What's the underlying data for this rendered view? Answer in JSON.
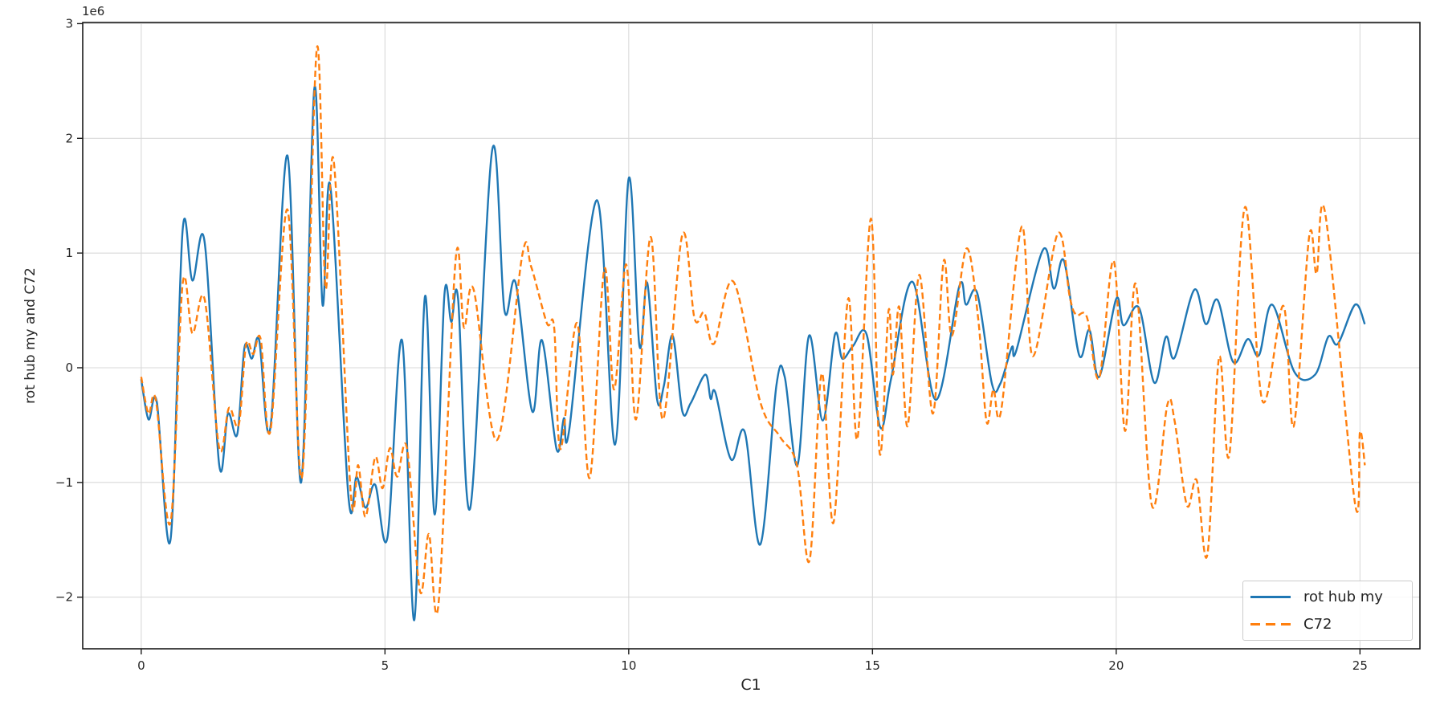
{
  "chart_data": {
    "type": "line",
    "title": "",
    "xlabel": "C1",
    "ylabel": "rot hub my and C72",
    "offset_text": "1e6",
    "y_unit_multiplier": 1000000,
    "xlim": [
      -1.2,
      26.23
    ],
    "ylim": [
      -2.45,
      3.01
    ],
    "xticks": [
      0,
      5,
      10,
      15,
      20,
      25
    ],
    "yticks": [
      -2,
      -1,
      0,
      1,
      2,
      3
    ],
    "grid": true,
    "legend_position": "lower right",
    "colors": {
      "blue": "#1f77b4",
      "orange": "#ff7f0e",
      "grid": "#d9d9d9",
      "spine": "#1a1a1a",
      "text": "#262626"
    },
    "series": [
      {
        "name": "rot hub my",
        "color": "#1f77b4",
        "style": "solid",
        "x": [
          0,
          0.15,
          0.32,
          0.6,
          0.85,
          1.05,
          1.3,
          1.6,
          1.78,
          1.97,
          2.12,
          2.27,
          2.42,
          2.65,
          3.0,
          3.28,
          3.55,
          3.72,
          3.88,
          4.25,
          4.42,
          4.6,
          4.8,
          5.05,
          5.35,
          5.6,
          5.82,
          6.02,
          6.22,
          6.36,
          6.5,
          6.75,
          7.2,
          7.45,
          7.68,
          8.02,
          8.22,
          8.52,
          8.67,
          8.78,
          9.35,
          9.72,
          10.0,
          10.22,
          10.38,
          10.58,
          10.72,
          10.9,
          11.1,
          11.27,
          11.57,
          11.68,
          11.78,
          12.1,
          12.38,
          12.7,
          13.03,
          13.2,
          13.46,
          13.7,
          13.98,
          14.23,
          14.38,
          14.6,
          14.88,
          15.16,
          15.38,
          15.82,
          16.3,
          16.78,
          16.92,
          17.15,
          17.45,
          17.62,
          17.86,
          17.95,
          18.5,
          18.72,
          18.93,
          19.24,
          19.45,
          19.65,
          20.0,
          20.15,
          20.47,
          20.78,
          21.02,
          21.2,
          21.6,
          21.84,
          22.08,
          22.4,
          22.7,
          22.93,
          23.2,
          23.66,
          24.08,
          24.35,
          24.55,
          24.9,
          25.1
        ],
        "y": [
          -0.1,
          -0.45,
          -0.3,
          -1.5,
          1.2,
          0.76,
          1.1,
          -0.85,
          -0.4,
          -0.58,
          0.18,
          0.08,
          0.24,
          -0.52,
          1.85,
          -1.0,
          2.43,
          0.55,
          1.58,
          -1.12,
          -0.95,
          -1.22,
          -1.02,
          -1.48,
          0.24,
          -2.2,
          0.62,
          -1.28,
          0.64,
          0.4,
          0.6,
          -1.22,
          1.9,
          0.5,
          0.74,
          -0.38,
          0.24,
          -0.71,
          -0.44,
          -0.54,
          1.46,
          -0.67,
          1.65,
          0.19,
          0.74,
          -0.27,
          -0.16,
          0.28,
          -0.38,
          -0.31,
          -0.06,
          -0.27,
          -0.22,
          -0.8,
          -0.56,
          -1.54,
          -0.15,
          -0.08,
          -0.85,
          0.28,
          -0.46,
          0.29,
          0.08,
          0.19,
          0.29,
          -0.52,
          -0.1,
          0.75,
          -0.28,
          0.71,
          0.55,
          0.65,
          -0.14,
          -0.14,
          0.18,
          0.15,
          1.03,
          0.69,
          0.93,
          0.11,
          0.33,
          -0.08,
          0.6,
          0.37,
          0.52,
          -0.13,
          0.27,
          0.09,
          0.68,
          0.38,
          0.59,
          0.05,
          0.25,
          0.11,
          0.55,
          -0.04,
          -0.06,
          0.27,
          0.21,
          0.55,
          0.38
        ]
      },
      {
        "name": "C72",
        "color": "#ff7f0e",
        "style": "dashed",
        "x": [
          0,
          0.15,
          0.3,
          0.6,
          0.85,
          1.05,
          1.3,
          1.6,
          1.8,
          2.0,
          2.15,
          2.3,
          2.45,
          2.65,
          3.0,
          3.3,
          3.6,
          3.78,
          3.95,
          4.3,
          4.45,
          4.6,
          4.8,
          4.95,
          5.1,
          5.25,
          5.45,
          5.72,
          5.9,
          6.1,
          6.45,
          6.62,
          6.82,
          7.3,
          7.82,
          8.0,
          8.32,
          8.47,
          8.6,
          8.94,
          9.2,
          9.5,
          9.7,
          9.95,
          10.15,
          10.45,
          10.7,
          11.1,
          11.35,
          11.55,
          11.75,
          12.15,
          12.7,
          13.1,
          13.45,
          13.71,
          13.96,
          14.2,
          14.5,
          14.69,
          14.97,
          15.15,
          15.33,
          15.42,
          15.55,
          15.72,
          15.96,
          16.24,
          16.46,
          16.63,
          16.93,
          17.17,
          17.34,
          17.48,
          17.64,
          18.06,
          18.29,
          18.8,
          19.05,
          19.18,
          19.4,
          19.65,
          19.95,
          20.18,
          20.4,
          20.73,
          21.05,
          21.2,
          21.45,
          21.65,
          21.87,
          22.11,
          22.32,
          22.64,
          23.0,
          23.43,
          23.64,
          23.96,
          24.11,
          24.29,
          24.9,
          25.0,
          25.1
        ],
        "y": [
          -0.08,
          -0.4,
          -0.28,
          -1.35,
          0.73,
          0.3,
          0.6,
          -0.7,
          -0.35,
          -0.5,
          0.2,
          0.12,
          0.25,
          -0.55,
          1.38,
          -0.95,
          2.78,
          0.7,
          1.8,
          -1.1,
          -0.85,
          -1.3,
          -0.78,
          -1.05,
          -0.7,
          -0.95,
          -0.7,
          -1.95,
          -1.45,
          -2.05,
          0.95,
          0.35,
          0.68,
          -0.63,
          0.99,
          0.88,
          0.39,
          0.35,
          -0.71,
          0.39,
          -0.96,
          0.86,
          -0.19,
          0.9,
          -0.45,
          1.14,
          -0.45,
          1.16,
          0.43,
          0.48,
          0.21,
          0.75,
          -0.3,
          -0.6,
          -0.85,
          -1.68,
          -0.05,
          -1.35,
          0.6,
          -0.62,
          1.3,
          -0.75,
          0.5,
          -0.06,
          0.53,
          -0.51,
          0.81,
          -0.4,
          0.93,
          0.28,
          1.04,
          0.42,
          -0.47,
          -0.19,
          -0.37,
          1.23,
          0.1,
          1.17,
          0.61,
          0.46,
          0.44,
          -0.09,
          0.93,
          -0.55,
          0.73,
          -1.2,
          -0.32,
          -0.47,
          -1.2,
          -0.98,
          -1.63,
          0.09,
          -0.76,
          1.4,
          -0.29,
          0.54,
          -0.51,
          1.15,
          0.82,
          1.34,
          -1.19,
          -0.56,
          -0.85
        ]
      }
    ]
  },
  "legend": {
    "items": [
      {
        "label": "rot hub my",
        "color": "#1f77b4",
        "style": "solid"
      },
      {
        "label": "C72",
        "color": "#ff7f0e",
        "style": "dashed"
      }
    ]
  }
}
